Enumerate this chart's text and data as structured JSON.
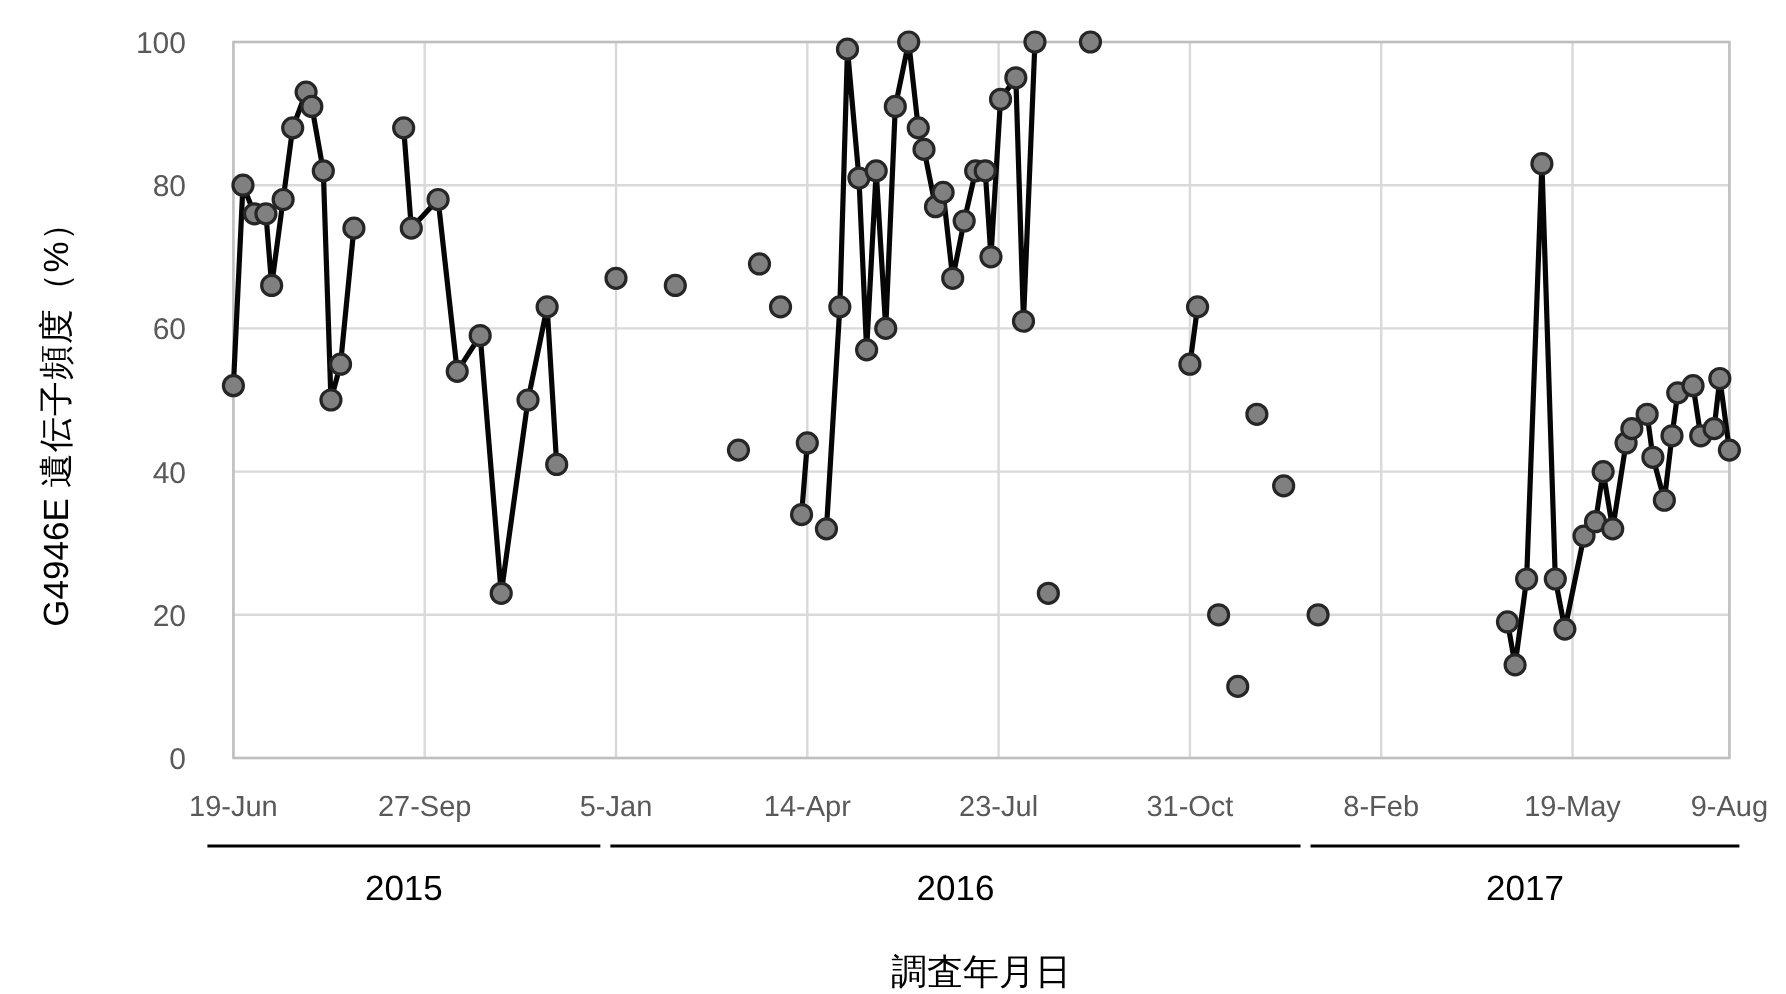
{
  "chart_data": {
    "type": "line",
    "xlabel": "調査年月日",
    "ylabel": "G4946E 遺伝子頻度（%）",
    "xlim": [
      "2015-06-19",
      "2017-08-09"
    ],
    "xticks": [
      {
        "value": "2015-06-19",
        "label": "19-Jun"
      },
      {
        "value": "2015-09-27",
        "label": "27-Sep"
      },
      {
        "value": "2016-01-05",
        "label": "5-Jan"
      },
      {
        "value": "2016-04-14",
        "label": "14-Apr"
      },
      {
        "value": "2016-07-23",
        "label": "23-Jul"
      },
      {
        "value": "2016-10-31",
        "label": "31-Oct"
      },
      {
        "value": "2017-02-08",
        "label": "8-Feb"
      },
      {
        "value": "2017-05-19",
        "label": "19-May"
      },
      {
        "value": "2017-08-09",
        "label": "9-Aug"
      }
    ],
    "ylim": [
      0,
      100
    ],
    "yticks": [
      0,
      20,
      40,
      60,
      80,
      100
    ],
    "grid": true,
    "marker": "circle",
    "line_style": "solid",
    "color": "#808080",
    "annotations": [
      "2015",
      "2016",
      "2017"
    ],
    "x": [
      "2015-06-19",
      "2015-06-24",
      "2015-06-30",
      "2015-07-06",
      "2015-07-09",
      "2015-07-15",
      "2015-07-20",
      "2015-07-27",
      "2015-07-30",
      "2015-08-05",
      "2015-08-09",
      "2015-08-14",
      "2015-08-21",
      "2015-09-03",
      "2015-09-16",
      "2015-09-20",
      "2015-10-04",
      "2015-10-14",
      "2015-10-26",
      "2015-11-06",
      "2015-11-20",
      "2015-11-30",
      "2015-12-05",
      "2015-12-20",
      "2016-01-05",
      "2016-01-20",
      "2016-02-05",
      "2016-02-20",
      "2016-03-09",
      "2016-03-15",
      "2016-03-20",
      "2016-03-25",
      "2016-03-31",
      "2016-04-05",
      "2016-04-11",
      "2016-04-14",
      "2016-04-19",
      "2016-04-24",
      "2016-05-01",
      "2016-05-05",
      "2016-05-11",
      "2016-05-15",
      "2016-05-20",
      "2016-05-25",
      "2016-05-30",
      "2016-06-06",
      "2016-06-11",
      "2016-06-14",
      "2016-06-20",
      "2016-06-24",
      "2016-06-29",
      "2016-07-05",
      "2016-07-11",
      "2016-07-16",
      "2016-07-19",
      "2016-07-24",
      "2016-08-01",
      "2016-08-05",
      "2016-08-11",
      "2016-08-14",
      "2016-08-18",
      "2016-08-28",
      "2016-09-09",
      "2016-10-10",
      "2016-10-31",
      "2016-11-04",
      "2016-11-10",
      "2016-11-15",
      "2016-11-20",
      "2016-11-25",
      "2016-11-30",
      "2016-12-05",
      "2016-12-12",
      "2016-12-19",
      "2016-12-28",
      "2017-01-06",
      "2017-03-01",
      "2017-04-15",
      "2017-04-19",
      "2017-04-25",
      "2017-05-03",
      "2017-05-10",
      "2017-05-15",
      "2017-05-25",
      "2017-05-31",
      "2017-06-04",
      "2017-06-09",
      "2017-06-16",
      "2017-06-19",
      "2017-06-27",
      "2017-06-30",
      "2017-07-06",
      "2017-07-10",
      "2017-07-13",
      "2017-07-21",
      "2017-07-25",
      "2017-08-01",
      "2017-08-04",
      "2017-08-09"
    ],
    "values": [
      52,
      80,
      76,
      76,
      66,
      78,
      88,
      93,
      91,
      82,
      50,
      55,
      74,
      null,
      88,
      74,
      78,
      54,
      59,
      23,
      50,
      63,
      41,
      null,
      67,
      null,
      66,
      null,
      43,
      null,
      69,
      null,
      63,
      null,
      34,
      44,
      null,
      32,
      63,
      99,
      81,
      57,
      82,
      60,
      91,
      100,
      88,
      85,
      77,
      79,
      67,
      75,
      82,
      82,
      70,
      92,
      95,
      61,
      100,
      null,
      23,
      null,
      100,
      null,
      55,
      63,
      null,
      20,
      null,
      10,
      null,
      48,
      null,
      38,
      null,
      20,
      null,
      19,
      13,
      25,
      83,
      25,
      18,
      31,
      33,
      40,
      32,
      44,
      46,
      48,
      42,
      36,
      45,
      51,
      52,
      45,
      46,
      53,
      43
    ]
  }
}
